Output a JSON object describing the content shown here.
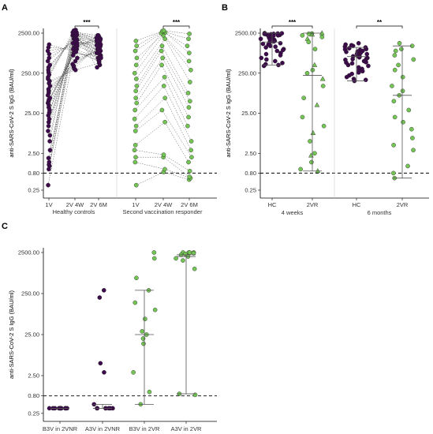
{
  "colors": {
    "hc": "#3d0a4c",
    "vr": "#74c555",
    "pt_outline": "#222222",
    "axis": "#000000"
  },
  "chart_data": [
    {
      "type": "scatter",
      "panel": "A",
      "ylabel": "anti-SARS-CoV-2 S IgG (BAU/ml)",
      "yscale": "log",
      "yticks": [
        "0.25",
        "0.80",
        "2.50",
        "25.00",
        "250.00",
        "2500.00"
      ],
      "threshold": 0.8,
      "groups": [
        "Healthy controls",
        "Second vaccination responder"
      ],
      "categories": [
        "1V",
        "2V 4W",
        "2V 6M"
      ],
      "paired_lines": true,
      "brackets": [
        {
          "group": "Healthy controls",
          "from": "2V 4W",
          "to": "2V 6M",
          "label": "***"
        },
        {
          "group": "Second vaccination responder",
          "from": "2V 4W",
          "to": "2V 6M",
          "label": "***"
        }
      ],
      "series": [
        {
          "group": "Healthy controls",
          "values": [
            [
              0.4,
              1500,
              520
            ],
            [
              1.0,
              1800,
              700
            ],
            [
              1.2,
              1900,
              900
            ],
            [
              1.3,
              2200,
              1100
            ],
            [
              1.5,
              2300,
              1300
            ],
            [
              1.9,
              2400,
              1500
            ],
            [
              3,
              2500,
              1700
            ],
            [
              5,
              2600,
              2000
            ],
            [
              7,
              2700,
              400
            ],
            [
              9,
              2300,
              350
            ],
            [
              12,
              2100,
              600
            ],
            [
              15,
              1900,
              800
            ],
            [
              18,
              1700,
              1000
            ],
            [
              22,
              1500,
              1200
            ],
            [
              26,
              1400,
              1400
            ],
            [
              30,
              1300,
              1600
            ],
            [
              35,
              1200,
              1800
            ],
            [
              40,
              1100,
              2000
            ],
            [
              45,
              1000,
              2200
            ],
            [
              50,
              900,
              500
            ],
            [
              55,
              800,
              650
            ],
            [
              60,
              700,
              750
            ],
            [
              70,
              600,
              850
            ],
            [
              80,
              500,
              950
            ],
            [
              90,
              420,
              1050
            ],
            [
              100,
              380,
              1150
            ],
            [
              120,
              350,
              1250
            ],
            [
              140,
              320,
              1350
            ],
            [
              160,
              300,
              450
            ],
            [
              180,
              2800,
              550
            ],
            [
              200,
              2900,
              700
            ],
            [
              230,
              3000,
              1200
            ],
            [
              260,
              2600,
              2200
            ],
            [
              300,
              2400,
              1900
            ],
            [
              350,
              2200,
              1700
            ],
            [
              400,
              2000,
              1500
            ],
            [
              500,
              1800,
              1300
            ],
            [
              600,
              1600,
              1100
            ],
            [
              750,
              1400,
              900
            ],
            [
              900,
              1200,
              700
            ],
            [
              1100,
              1000,
              600
            ],
            [
              1300,
              850,
              500
            ]
          ]
        },
        {
          "group": "Second vaccination responder",
          "values": [
            [
              0.4,
              0.85,
              0.55
            ],
            [
              1.5,
              1.0,
              0.6
            ],
            [
              2.0,
              2.0,
              0.65
            ],
            [
              3.0,
              2.3,
              0.9
            ],
            [
              4.0,
              15,
              1.5
            ],
            [
              9,
              30,
              2.0
            ],
            [
              12,
              60,
              3
            ],
            [
              18,
              120,
              5
            ],
            [
              30,
              200,
              12
            ],
            [
              45,
              400,
              20
            ],
            [
              60,
              600,
              35
            ],
            [
              90,
              900,
              50
            ],
            [
              120,
              1200,
              80
            ],
            [
              180,
              1800,
              150
            ],
            [
              250,
              2200,
              300
            ],
            [
              400,
              2500,
              500
            ],
            [
              600,
              2600,
              800
            ],
            [
              900,
              2700,
              1200
            ],
            [
              1200,
              2800,
              1800
            ],
            [
              1600,
              2900,
              2400
            ]
          ]
        }
      ]
    },
    {
      "type": "scatter",
      "panel": "B",
      "ylabel": "anti-SARS-CoV-2 S IgG (BAU/ml)",
      "yscale": "log",
      "yticks": [
        "0.25",
        "0.80",
        "2.50",
        "25.00",
        "250.00",
        "2500.00"
      ],
      "threshold": 0.8,
      "groups": [
        "4 weeks",
        "6 months"
      ],
      "categories": [
        "HC",
        "2VR"
      ],
      "brackets": [
        {
          "group": "4 weeks",
          "label": "***"
        },
        {
          "group": "6 months",
          "label": "**"
        }
      ],
      "summary": [
        {
          "group": "4 weeks",
          "category": "HC",
          "median": 1500,
          "q1": 400,
          "q3": 2500
        },
        {
          "group": "4 weeks",
          "category": "2VR",
          "median": 220,
          "q1": 0.9,
          "q3": 2500
        },
        {
          "group": "6 months",
          "category": "HC",
          "median": 650,
          "q1": 160,
          "q3": 1100
        },
        {
          "group": "6 months",
          "category": "2VR",
          "median": 70,
          "q1": 0.6,
          "q3": 1200
        }
      ],
      "series": [
        {
          "group": "4 weeks",
          "category": "HC",
          "values": [
            2500,
            2450,
            2400,
            2350,
            2300,
            2250,
            2200,
            2100,
            2000,
            1900,
            1800,
            1700,
            1600,
            1500,
            1400,
            1300,
            1200,
            1100,
            1000,
            900,
            800,
            700,
            600,
            500,
            450,
            420,
            400,
            380,
            2480,
            2380,
            2280,
            2180,
            1950,
            1750,
            1550,
            1350,
            1150,
            950,
            750,
            550
          ]
        },
        {
          "group": "4 weeks",
          "category": "2VR",
          "values": [
            2500,
            2450,
            2400,
            2300,
            2200,
            2000,
            1800,
            1500,
            1000,
            400,
            300,
            250,
            180,
            120,
            60,
            40,
            20,
            12,
            8,
            5,
            2.5,
            2.2,
            1.5,
            1.0,
            0.9
          ]
        },
        {
          "group": "6 months",
          "category": "HC",
          "values": [
            1400,
            1300,
            1200,
            1100,
            1050,
            1000,
            950,
            900,
            850,
            800,
            750,
            700,
            680,
            650,
            620,
            600,
            570,
            540,
            500,
            470,
            440,
            400,
            380,
            350,
            320,
            300,
            280,
            260,
            240,
            220,
            200,
            180,
            170,
            160,
            1250,
            1150,
            980,
            870,
            760,
            660,
            560,
            460
          ]
        },
        {
          "group": "6 months",
          "category": "2VR",
          "values": [
            1400,
            1200,
            1000,
            900,
            700,
            550,
            400,
            300,
            200,
            120,
            90,
            70,
            50,
            30,
            20,
            15,
            10,
            6,
            4,
            3,
            1.2,
            0.8,
            0.6
          ]
        }
      ]
    },
    {
      "type": "scatter",
      "panel": "C",
      "ylabel": "anti-SARS-CoV-2 S IgG (BAU/ml)",
      "yscale": "log",
      "yticks": [
        "0.25",
        "0.80",
        "2.50",
        "25.00",
        "250.00",
        "2500.00"
      ],
      "threshold": 0.8,
      "categories": [
        "B3V in 2VNR",
        "A3V in 2VNR",
        "B3V in 2VR",
        "A3V in 2VR"
      ],
      "summary": [
        {
          "category": "B3V in 2VNR",
          "median": 0.4,
          "q1": 0.4,
          "q3": 0.4
        },
        {
          "category": "A3V in 2VNR",
          "median": 0.4,
          "q1": 0.4,
          "q3": 0.5
        },
        {
          "category": "B3V in 2VR",
          "median": 25,
          "q1": 0.5,
          "q3": 300
        },
        {
          "category": "A3V in 2VR",
          "median": 2000,
          "q1": 0.9,
          "q3": 2200
        }
      ],
      "series": [
        {
          "category": "B3V in 2VNR",
          "color": "hc",
          "values": [
            0.4,
            0.4,
            0.4,
            0.4,
            0.4,
            0.4,
            0.4,
            0.4,
            0.4,
            0.4,
            0.4
          ]
        },
        {
          "category": "A3V in 2VNR",
          "color": "hc",
          "values": [
            300,
            200,
            5,
            3,
            0.5,
            0.4,
            0.4,
            0.4,
            0.4,
            0.4,
            0.4,
            0.4
          ]
        },
        {
          "category": "B3V in 2VR",
          "color": "vr",
          "values": [
            2500,
            1800,
            600,
            300,
            150,
            100,
            60,
            30,
            25,
            20,
            15,
            3,
            1,
            0.5
          ]
        },
        {
          "category": "A3V in 2VR",
          "color": "vr",
          "values": [
            2500,
            2500,
            2500,
            2500,
            2400,
            2300,
            2200,
            2000,
            1800,
            1600,
            1000,
            0.9,
            0.85
          ]
        }
      ]
    }
  ]
}
